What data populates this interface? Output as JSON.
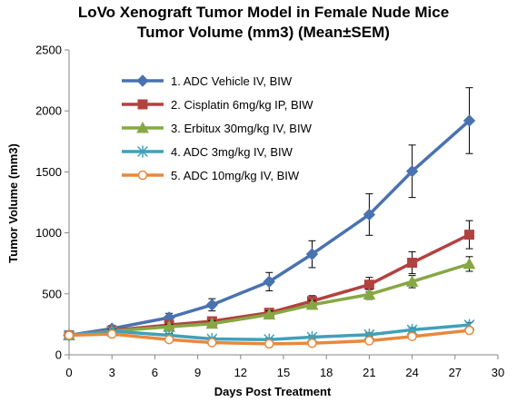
{
  "chart_data": {
    "type": "line",
    "title_lines": [
      "LoVo Xenograft Tumor Model in Female Nude Mice",
      "Tumor Volume (mm3) (Mean±SEM)"
    ],
    "xlabel": "Days Post Treatment",
    "ylabel": "Tumor Volume (mm3)",
    "xlim": [
      0,
      30
    ],
    "ylim": [
      0,
      2500
    ],
    "xticks": [
      0,
      3,
      6,
      9,
      12,
      15,
      18,
      21,
      24,
      27,
      30
    ],
    "yticks": [
      0,
      500,
      1000,
      1500,
      2000,
      2500
    ],
    "x": [
      0,
      3,
      7,
      10,
      14,
      17,
      21,
      24,
      28
    ],
    "grid": false,
    "legend_position": "top-left inside plot",
    "series": [
      {
        "name": "1. ADC Vehicle IV, BIW",
        "color": "#4a72b0",
        "marker": "diamond",
        "values": [
          160,
          215,
          305,
          410,
          600,
          825,
          1150,
          1505,
          1920
        ],
        "sem": [
          20,
          25,
          35,
          50,
          75,
          110,
          170,
          215,
          270
        ]
      },
      {
        "name": "2. Cisplatin 6mg/kg IP, BIW",
        "color": "#b34140",
        "marker": "square",
        "values": [
          160,
          200,
          245,
          275,
          345,
          440,
          575,
          755,
          985
        ],
        "sem": [
          15,
          15,
          25,
          30,
          35,
          45,
          60,
          90,
          115
        ]
      },
      {
        "name": "3. Erbitux 30mg/kg IV, BIW",
        "color": "#86a844",
        "marker": "triangle",
        "values": [
          160,
          195,
          230,
          255,
          330,
          410,
          495,
          600,
          745
        ],
        "sem": [
          15,
          15,
          20,
          25,
          30,
          35,
          40,
          50,
          60
        ]
      },
      {
        "name": "4. ADC 3mg/kg IV, BIW",
        "color": "#3fa1b9",
        "marker": "asterisk",
        "values": [
          160,
          195,
          160,
          130,
          125,
          145,
          165,
          205,
          245
        ],
        "sem": [
          15,
          15,
          15,
          12,
          12,
          12,
          15,
          18,
          20
        ]
      },
      {
        "name": "5. ADC 10mg/kg IV, BIW",
        "color": "#e8883d",
        "marker": "circle",
        "values": [
          160,
          170,
          125,
          100,
          90,
          95,
          115,
          150,
          200
        ],
        "sem": [
          15,
          15,
          12,
          10,
          10,
          10,
          12,
          12,
          15
        ]
      }
    ]
  }
}
